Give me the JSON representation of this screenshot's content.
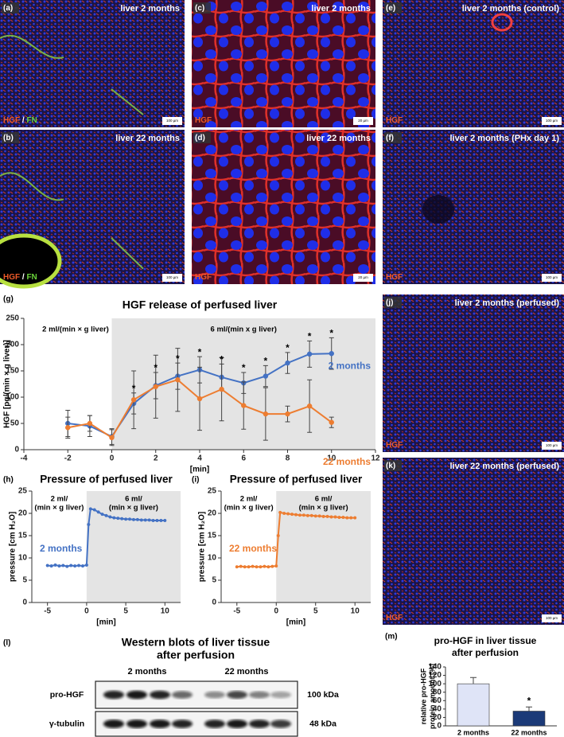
{
  "panels": [
    {
      "letter": "(a)",
      "title": "liver 2 months",
      "stain": [
        {
          "text": "HGF",
          "color": "#f05a28"
        },
        {
          "text": " / ",
          "color": "#ffffff"
        },
        {
          "text": "FN",
          "color": "#6ad33a"
        }
      ],
      "scale_bar": "100 µm"
    },
    {
      "letter": "(b)",
      "title": "liver 22 months",
      "stain": [
        {
          "text": "HGF",
          "color": "#f05a28"
        },
        {
          "text": " / ",
          "color": "#ffffff"
        },
        {
          "text": "FN",
          "color": "#6ad33a"
        }
      ],
      "scale_bar": "100 µm"
    },
    {
      "letter": "(c)",
      "title": "liver 2 months",
      "stain": [
        {
          "text": "HGF",
          "color": "#f05a28"
        }
      ],
      "scale_bar": "20 µm"
    },
    {
      "letter": "(d)",
      "title": "liver 22 months",
      "stain": [
        {
          "text": "HGF",
          "color": "#f05a28"
        }
      ],
      "scale_bar": "20 µm"
    },
    {
      "letter": "(e)",
      "title": "liver 2 months (control)",
      "stain": [
        {
          "text": "HGF",
          "color": "#f05a28"
        }
      ],
      "scale_bar": "100 µm"
    },
    {
      "letter": "(f)",
      "title": "liver 2 months (PHx day 1)",
      "stain": [
        {
          "text": "HGF",
          "color": "#f05a28"
        }
      ],
      "scale_bar": "100 µm"
    },
    {
      "letter": "(j)",
      "title": "liver 2 months (perfused)",
      "stain": [
        {
          "text": "HGF",
          "color": "#f05a28"
        }
      ],
      "scale_bar": "100 µm"
    },
    {
      "letter": "(k)",
      "title": "liver 22 months (perfused)",
      "stain": [
        {
          "text": "HGF",
          "color": "#f05a28"
        }
      ],
      "scale_bar": "100 µm"
    }
  ],
  "chart_data": [
    {
      "type": "line",
      "panel_label": "(g)",
      "title": "HGF release of perfused liver",
      "xlabel": "[min]",
      "ylabel": "HGF [pg/(min × g liver)]",
      "xlim": [
        -4,
        12
      ],
      "xticks": [
        -4,
        -2,
        0,
        2,
        4,
        6,
        8,
        10,
        12
      ],
      "ylim": [
        0,
        250
      ],
      "yticks": [
        0,
        50,
        100,
        150,
        200,
        250
      ],
      "phases": [
        {
          "label": "2 ml/(min × g liver)"
        },
        {
          "label": "6 ml/(min x g liver)",
          "start": 0,
          "shaded": true
        }
      ],
      "x": [
        -2,
        -1,
        0,
        1,
        2,
        3,
        4,
        5,
        6,
        7,
        8,
        9,
        10
      ],
      "series": [
        {
          "name": "2 months",
          "color": "#4472c4",
          "values": [
            50,
            45,
            25,
            88,
            122,
            140,
            152,
            138,
            127,
            140,
            165,
            182,
            183
          ],
          "errors": [
            25,
            20,
            15,
            20,
            25,
            25,
            25,
            25,
            20,
            20,
            20,
            25,
            30
          ]
        },
        {
          "name": "22 months",
          "color": "#ed7d31",
          "values": [
            42,
            50,
            23,
            95,
            120,
            133,
            97,
            115,
            84,
            68,
            68,
            83,
            52
          ],
          "errors": [
            20,
            15,
            15,
            55,
            60,
            60,
            60,
            60,
            45,
            50,
            15,
            50,
            10
          ]
        }
      ],
      "significance": {
        "label": "*",
        "x": [
          1,
          2,
          3,
          4,
          5,
          6,
          7,
          8,
          9,
          10
        ]
      }
    },
    {
      "type": "line",
      "panel_label": "(h)",
      "title": "Pressure of perfused liver",
      "xlabel": "[min]",
      "ylabel": "pressure [cm H₂O]",
      "xlim": [
        -7,
        12
      ],
      "xticks": [
        -5,
        0,
        5,
        10
      ],
      "ylim": [
        0,
        25
      ],
      "yticks": [
        0,
        5,
        10,
        15,
        20,
        25
      ],
      "phases": [
        {
          "label": [
            "2 ml/",
            "(min × g liver)"
          ]
        },
        {
          "label": [
            "6 ml/",
            "(min × g liver)"
          ],
          "start": 0,
          "shaded": true
        }
      ],
      "x": [
        -5,
        -4.5,
        -4,
        -3.5,
        -3,
        -2.5,
        -2,
        -1.5,
        -1,
        -0.5,
        0,
        0.25,
        0.5,
        1,
        1.5,
        2,
        2.5,
        3,
        3.5,
        4,
        4.5,
        5,
        5.5,
        6,
        6.5,
        7,
        7.5,
        8,
        8.5,
        9,
        9.5,
        10
      ],
      "series": [
        {
          "name": "2 months",
          "color": "#4472c4",
          "values": [
            8.3,
            8.2,
            8.4,
            8.2,
            8.3,
            8.1,
            8.3,
            8.2,
            8.3,
            8.2,
            8.4,
            17.5,
            21.0,
            20.8,
            20.3,
            19.8,
            19.5,
            19.2,
            19.0,
            18.9,
            18.8,
            18.7,
            18.7,
            18.6,
            18.6,
            18.5,
            18.5,
            18.5,
            18.4,
            18.4,
            18.4,
            18.4
          ]
        }
      ]
    },
    {
      "type": "line",
      "panel_label": "(i)",
      "title": "Pressure of perfused liver",
      "xlabel": "[min]",
      "ylabel": "pressure [cm H₂O]",
      "xlim": [
        -7,
        12
      ],
      "xticks": [
        -5,
        0,
        5,
        10
      ],
      "ylim": [
        0,
        25
      ],
      "yticks": [
        0,
        5,
        10,
        15,
        20,
        25
      ],
      "phases": [
        {
          "label": [
            "2 ml/",
            "(min × g liver)"
          ]
        },
        {
          "label": [
            "6 ml/",
            "(min × g liver)"
          ],
          "start": 0,
          "shaded": true
        }
      ],
      "x": [
        -5,
        -4.5,
        -4,
        -3.5,
        -3,
        -2.5,
        -2,
        -1.5,
        -1,
        -0.5,
        0,
        0.25,
        0.5,
        1,
        1.5,
        2,
        2.5,
        3,
        3.5,
        4,
        4.5,
        5,
        5.5,
        6,
        6.5,
        7,
        7.5,
        8,
        8.5,
        9,
        9.5,
        10
      ],
      "series": [
        {
          "name": "22 months",
          "color": "#ed7d31",
          "values": [
            8.0,
            8.1,
            8.0,
            8.0,
            8.1,
            8.0,
            8.0,
            8.1,
            8.0,
            8.1,
            8.2,
            15.0,
            20.2,
            20.0,
            19.9,
            19.8,
            19.7,
            19.6,
            19.6,
            19.5,
            19.5,
            19.4,
            19.4,
            19.3,
            19.3,
            19.2,
            19.2,
            19.1,
            19.1,
            19.0,
            19.0,
            19.0
          ]
        }
      ]
    },
    {
      "type": "bar",
      "panel_label": "(m)",
      "title": [
        "pro-HGF in liver tissue",
        "after perfusion"
      ],
      "ylabel": [
        "relative pro-HGF",
        "protein amount [%]"
      ],
      "ylim": [
        0,
        140
      ],
      "yticks": [
        0,
        20,
        40,
        60,
        80,
        100,
        120,
        140
      ],
      "categories": [
        "2 months",
        "22 months"
      ],
      "values": [
        100,
        35
      ],
      "errors": [
        15,
        10
      ],
      "colors": [
        "#dfe4f7",
        "#1b3a78"
      ],
      "significance": {
        "label": "*",
        "categories": [
          1
        ]
      }
    }
  ],
  "western_blot": {
    "panel_label": "(l)",
    "title": [
      "Western blots of liver tissue",
      "after perfusion"
    ],
    "groups": [
      "2 months",
      "22 months"
    ],
    "rows": [
      {
        "label": "pro-HGF",
        "size": "100 kDa"
      },
      {
        "label": "γ-tubulin",
        "size": "48 kDa"
      }
    ]
  }
}
